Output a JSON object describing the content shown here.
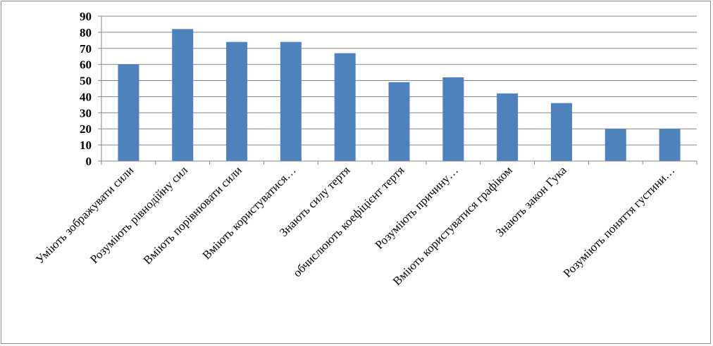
{
  "chart_data": {
    "type": "bar",
    "categories": [
      "Уміють зображувати сили",
      "Розуміють рівнодійну сил",
      "Вміють порівнювати сили",
      "Вміють користуватися…",
      "Знають силу тертя",
      "обчислюють коефіцієнт тертя",
      "Розуміють причину…",
      "Вміють користуватися графіком",
      "Знають закон Гука",
      "",
      "Розуміють поняття густини…"
    ],
    "values": [
      60,
      82,
      74,
      74,
      67,
      49,
      52,
      42,
      36,
      20,
      20
    ],
    "ylim": [
      0,
      90
    ],
    "yticks": [
      0,
      10,
      20,
      30,
      40,
      50,
      60,
      70,
      80,
      90
    ],
    "grid": true,
    "bar_color": "#4f81bd",
    "grid_color": "#868686",
    "legend": "none"
  }
}
